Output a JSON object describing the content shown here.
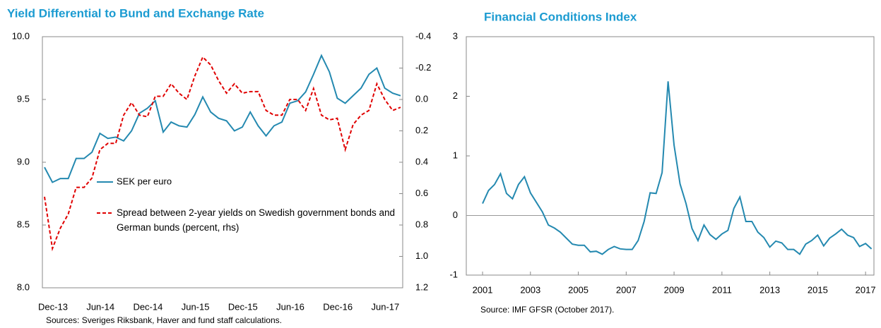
{
  "chart_data": [
    {
      "type": "line",
      "title": "Yield Differential to Bund and Exchange Rate",
      "source": "Sources: Sveriges Riksbank, Haver and fund staff calculations.",
      "categories": [
        "Dec-13",
        null,
        null,
        null,
        null,
        null,
        "Jun-14",
        null,
        null,
        null,
        null,
        null,
        "Dec-14",
        null,
        null,
        null,
        null,
        null,
        "Jun-15",
        null,
        null,
        null,
        null,
        null,
        "Dec-15",
        null,
        null,
        null,
        null,
        null,
        "Jun-16",
        null,
        null,
        null,
        null,
        null,
        "Dec-16",
        null,
        null,
        null,
        null,
        null,
        "Jun-17",
        null,
        null,
        null
      ],
      "ylim": [
        8,
        10
      ],
      "yticks": [
        {
          "value": 8,
          "label": "8.0"
        },
        8.5,
        {
          "value": 9,
          "label": "9.0"
        },
        9.5,
        {
          "value": 10,
          "label": "10.0"
        }
      ],
      "y2lim": [
        1.2,
        -0.4
      ],
      "y2ticks": [
        1.2,
        {
          "value": 1,
          "label": "1.0"
        },
        0.8,
        0.6,
        0.4,
        0.2,
        {
          "value": 0,
          "label": "0.0"
        },
        -0.2,
        -0.4
      ],
      "series": [
        {
          "name": "SEK per euro",
          "color": "#2489b0",
          "dashed": false,
          "values": [
            8.96,
            8.84,
            8.87,
            8.87,
            9.03,
            9.03,
            9.08,
            9.23,
            9.19,
            9.2,
            9.17,
            9.25,
            9.39,
            9.43,
            9.49,
            9.24,
            9.32,
            9.29,
            9.28,
            9.38,
            9.52,
            9.4,
            9.35,
            9.33,
            9.25,
            9.28,
            9.4,
            9.29,
            9.21,
            9.29,
            9.32,
            9.47,
            9.49,
            9.56,
            9.7,
            9.85,
            9.72,
            9.51,
            9.47,
            9.53,
            9.59,
            9.7,
            9.75,
            9.59,
            9.55,
            9.53
          ]
        },
        {
          "name": "Spread between 2-year yields on Swedish government bonds and German bunds (percent, rhs)",
          "color": "#e00000",
          "dashed": true,
          "axis": "y2",
          "values": [
            0.62,
            0.95,
            0.82,
            0.73,
            0.56,
            0.56,
            0.5,
            0.32,
            0.28,
            0.28,
            0.1,
            0.02,
            0.1,
            0.11,
            -0.02,
            -0.02,
            -0.1,
            -0.04,
            0,
            -0.15,
            -0.27,
            -0.22,
            -0.12,
            -0.04,
            -0.1,
            -0.04,
            -0.05,
            -0.05,
            0.07,
            0.1,
            0.1,
            0,
            0,
            0.07,
            -0.07,
            0.1,
            0.13,
            0.12,
            0.32,
            0.16,
            0.1,
            0.07,
            -0.1,
            0,
            0.07,
            0.05
          ]
        }
      ]
    },
    {
      "type": "line",
      "title": "Financial Conditions Index",
      "source": "Source: IMF GFSR (October 2017).",
      "color": "#2489b0",
      "zero_line": true,
      "x": [
        2001,
        2001.25,
        2001.5,
        2001.75,
        2002,
        2002.25,
        2002.5,
        2002.75,
        2003,
        2003.25,
        2003.5,
        2003.75,
        2004,
        2004.25,
        2004.5,
        2004.75,
        2005,
        2005.25,
        2005.5,
        2005.75,
        2006,
        2006.25,
        2006.5,
        2006.75,
        2007,
        2007.25,
        2007.5,
        2007.75,
        2008,
        2008.25,
        2008.5,
        2008.75,
        2009,
        2009.25,
        2009.5,
        2009.75,
        2010,
        2010.25,
        2010.5,
        2010.75,
        2011,
        2011.25,
        2011.5,
        2011.75,
        2012,
        2012.25,
        2012.5,
        2012.75,
        2013,
        2013.25,
        2013.5,
        2013.75,
        2014,
        2014.25,
        2014.5,
        2014.75,
        2015,
        2015.25,
        2015.5,
        2015.75,
        2016,
        2016.25,
        2016.5,
        2016.75,
        2017,
        2017.25
      ],
      "values": [
        0.2,
        0.42,
        0.52,
        0.7,
        0.37,
        0.28,
        0.52,
        0.65,
        0.38,
        0.22,
        0.06,
        -0.16,
        -0.21,
        -0.28,
        -0.38,
        -0.48,
        -0.5,
        -0.5,
        -0.61,
        -0.6,
        -0.65,
        -0.57,
        -0.52,
        -0.56,
        -0.57,
        -0.57,
        -0.42,
        -0.1,
        0.38,
        0.37,
        0.72,
        2.25,
        1.18,
        0.53,
        0.2,
        -0.22,
        -0.42,
        -0.16,
        -0.32,
        -0.4,
        -0.31,
        -0.25,
        0.12,
        0.31,
        -0.1,
        -0.1,
        -0.28,
        -0.37,
        -0.53,
        -0.43,
        -0.46,
        -0.57,
        -0.57,
        -0.65,
        -0.48,
        -0.42,
        -0.33,
        -0.51,
        -0.38,
        -0.31,
        -0.23,
        -0.33,
        -0.37,
        -0.52,
        -0.47,
        -0.56
      ],
      "xlim": [
        2000.32,
        2017.35
      ],
      "xticks": [
        2001,
        2003,
        2005,
        2007,
        2009,
        2011,
        2013,
        2015,
        2017
      ],
      "ylim": [
        -1,
        3
      ],
      "yticks": [
        -1,
        0,
        1,
        2,
        3
      ]
    }
  ]
}
